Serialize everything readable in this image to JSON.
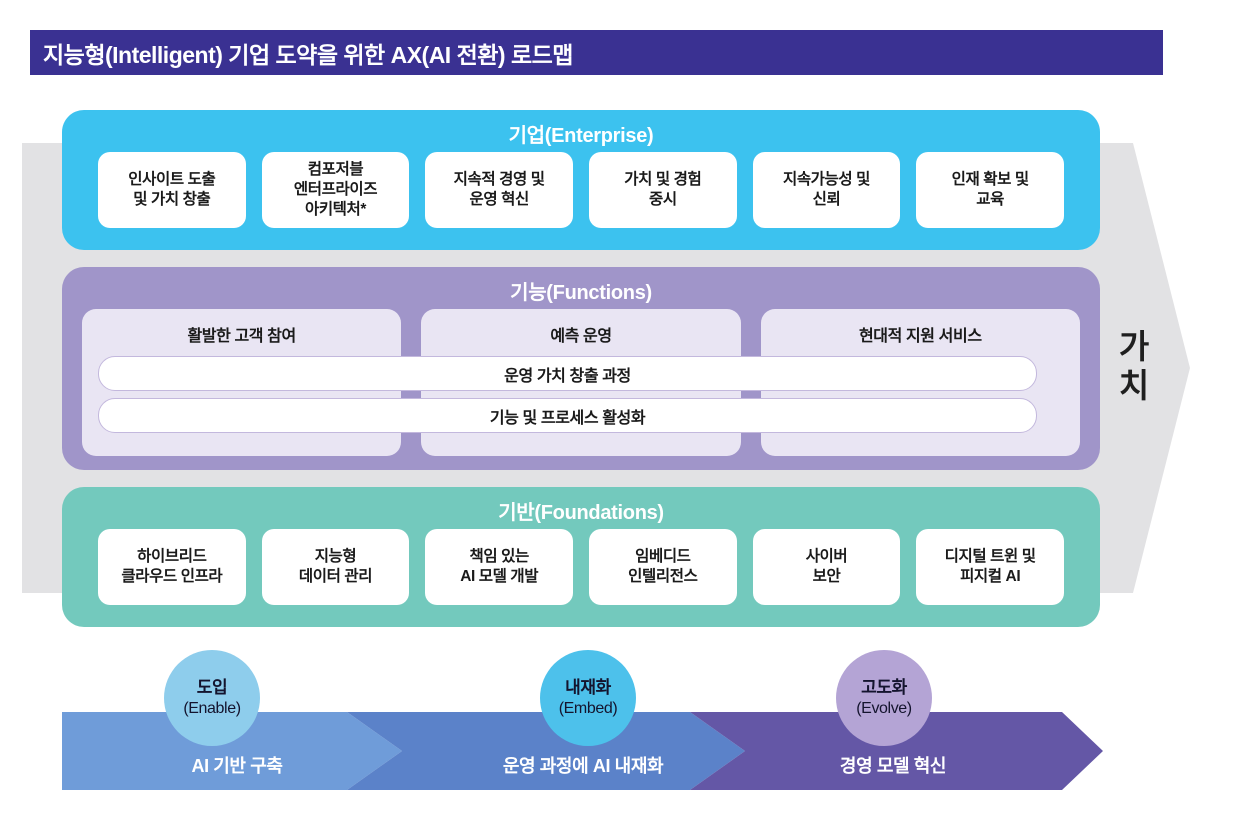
{
  "title": "지능형(Intelligent) 기업 도약을 위한 AX(AI 전환) 로드맵",
  "value_label": "가\n치",
  "enterprise": {
    "title": "기업(Enterprise)",
    "items": [
      "인사이트 도출\n및 가치 창출",
      "컴포저블\n엔터프라이즈\n아키텍처*",
      "지속적 경영 및\n운영 혁신",
      "가치 및 경험\n중시",
      "지속가능성 및\n신뢰",
      "인재 확보 및\n교육"
    ]
  },
  "functions": {
    "title": "기능(Functions)",
    "columns": [
      "활발한 고객 참여",
      "예측 운영",
      "현대적 지원 서비스"
    ],
    "bars": [
      "운영 가치 창출 과정",
      "기능 및 프로세스 활성화"
    ]
  },
  "foundations": {
    "title": "기반(Foundations)",
    "items": [
      "하이브리드\n클라우드 인프라",
      "지능형\n데이터 관리",
      "책임 있는\nAI 모델 개발",
      "임베디드\n인텔리전스",
      "사이버\n보안",
      "디지털 트윈 및\n피지컬 AI"
    ]
  },
  "phases": [
    {
      "circle_line1": "도입",
      "circle_line2": "(Enable)",
      "band_label": "AI 기반 구축"
    },
    {
      "circle_line1": "내재화",
      "circle_line2": "(Embed)",
      "band_label": "운영 과정에 AI 내재화"
    },
    {
      "circle_line1": "고도화",
      "circle_line2": "(Evolve)",
      "band_label": "경영 모델 혁신"
    }
  ],
  "colors": {
    "title_bar": "#3a3192",
    "enterprise": "#3cc2ef",
    "functions": "#a095c9",
    "functions_panel": "#e9e5f3",
    "foundations": "#73c9bd",
    "gray_arrow": "#e2e2e4",
    "band_segment_1": "#6f9cd9",
    "band_segment_2": "#5b82c9",
    "band_segment_3": "#6457a6",
    "circle_1": "#8ecdec",
    "circle_2": "#4dc1eb",
    "circle_3": "#b4a4d5"
  }
}
